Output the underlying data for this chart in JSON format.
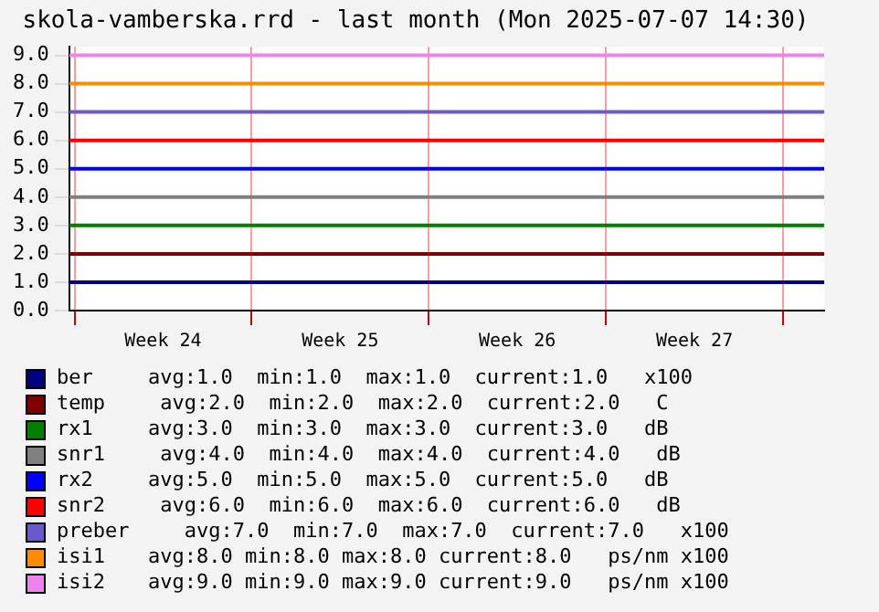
{
  "chart_data": {
    "type": "line",
    "title": "skola-vamberska.rrd - last month (Mon 2025-07-07 14:30)",
    "xlim": [
      "2025-06-08T19:00",
      "2025-07-08T15:00"
    ],
    "xticks": [
      {
        "value": "2025-06-09",
        "label": null
      },
      {
        "value": "2025-06-12T12:00",
        "label": "Week 24"
      },
      {
        "value": "2025-06-16",
        "label": null
      },
      {
        "value": "2025-06-19T12:00",
        "label": "Week 25"
      },
      {
        "value": "2025-06-23",
        "label": null
      },
      {
        "value": "2025-06-26T12:00",
        "label": "Week 26"
      },
      {
        "value": "2025-06-30",
        "label": null
      },
      {
        "value": "2025-07-03T12:00",
        "label": "Week 27"
      },
      {
        "value": "2025-07-07",
        "label": null
      }
    ],
    "ylim": [
      0,
      9.3
    ],
    "yticks": [
      {
        "value": 0,
        "label": "0.0"
      },
      {
        "value": 1,
        "label": "1.0"
      },
      {
        "value": 2,
        "label": "2.0"
      },
      {
        "value": 3,
        "label": "3.0"
      },
      {
        "value": 4,
        "label": "4.0"
      },
      {
        "value": 5,
        "label": "5.0"
      },
      {
        "value": 6,
        "label": "6.0"
      },
      {
        "value": 7,
        "label": "7.0"
      },
      {
        "value": 8,
        "label": "8.0"
      },
      {
        "value": 9,
        "label": "9.0"
      }
    ],
    "x": [
      "2025-06-08T19:00",
      "2025-07-08T15:00"
    ],
    "series": [
      {
        "name": "ber",
        "color": "#000080",
        "values": [
          1,
          1
        ]
      },
      {
        "name": "temp",
        "color": "#800000",
        "values": [
          2,
          2
        ]
      },
      {
        "name": "rx1",
        "color": "#008000",
        "values": [
          3,
          3
        ]
      },
      {
        "name": "snr1",
        "color": "#808080",
        "values": [
          4,
          4
        ]
      },
      {
        "name": "rx2",
        "color": "#0000ff",
        "values": [
          5,
          5
        ]
      },
      {
        "name": "snr2",
        "color": "#ff0000",
        "values": [
          6,
          6
        ]
      },
      {
        "name": "preber",
        "color": "#6a5acd",
        "values": [
          7,
          7
        ]
      },
      {
        "name": "isi1",
        "color": "#ff8c00",
        "values": [
          8,
          8
        ]
      },
      {
        "name": "isi2",
        "color": "#ee82ee",
        "values": [
          9,
          9
        ]
      }
    ],
    "annotations": [
      "avg:1.0  min:1.0  max:1.0  current:1.0   x100",
      " avg:2.0  min:2.0  max:2.0  current:2.0   C",
      "avg:3.0  min:3.0  max:3.0  current:3.0   dB",
      " avg:4.0  min:4.0  max:4.0  current:4.0   dB",
      "avg:5.0  min:5.0  max:5.0  current:5.0   dB",
      " avg:6.0  min:6.0  max:6.0  current:6.0   dB",
      "   avg:7.0  min:7.0  max:7.0  current:7.0   x100",
      "avg:8.0 min:8.0 max:8.0 current:8.0   ps/nm x100",
      "avg:9.0 min:9.0 max:9.0 current:9.0   ps/nm x100"
    ],
    "grid": true,
    "legend": "bottom",
    "marker": "none",
    "line_style": "solid"
  }
}
